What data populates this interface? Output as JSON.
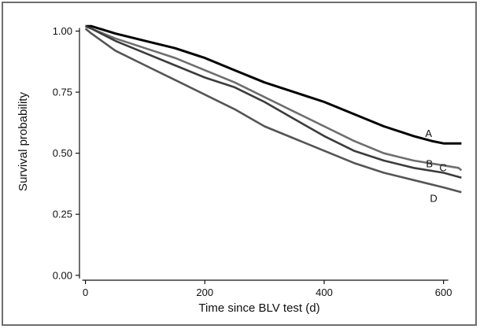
{
  "chart_data": {
    "type": "line",
    "xlabel": "Time since BLV test (d)",
    "ylabel": "Survival probability",
    "xlim": [
      -10,
      640
    ],
    "ylim": [
      -0.02,
      1.05
    ],
    "xticks": [
      0,
      200,
      400,
      600
    ],
    "yticks": [
      0.0,
      0.25,
      0.5,
      0.75,
      1.0
    ],
    "xtick_labels": [
      "0",
      "200",
      "400",
      "600"
    ],
    "ytick_labels": [
      "0.00",
      "0.25",
      "0.50",
      "0.75",
      "1.00"
    ],
    "grid": false,
    "legend": "direct labels at line ends",
    "series": [
      {
        "name": "A",
        "color": "#000000",
        "x": [
          0,
          10,
          50,
          100,
          150,
          200,
          250,
          300,
          350,
          400,
          450,
          500,
          550,
          580,
          600,
          630
        ],
        "y": [
          1.02,
          1.02,
          0.99,
          0.96,
          0.93,
          0.89,
          0.84,
          0.79,
          0.75,
          0.71,
          0.66,
          0.61,
          0.57,
          0.55,
          0.54,
          0.54
        ]
      },
      {
        "name": "B",
        "color": "#6e6e6e",
        "x": [
          0,
          10,
          50,
          100,
          150,
          200,
          250,
          300,
          350,
          400,
          450,
          500,
          550,
          600,
          625,
          630
        ],
        "y": [
          1.02,
          1.01,
          0.97,
          0.93,
          0.89,
          0.84,
          0.79,
          0.73,
          0.67,
          0.61,
          0.55,
          0.5,
          0.47,
          0.45,
          0.44,
          0.43
        ]
      },
      {
        "name": "C",
        "color": "#3c3c3c",
        "x": [
          0,
          10,
          50,
          100,
          150,
          200,
          250,
          300,
          350,
          400,
          450,
          500,
          550,
          600,
          630
        ],
        "y": [
          1.02,
          1.01,
          0.96,
          0.91,
          0.86,
          0.81,
          0.77,
          0.71,
          0.64,
          0.57,
          0.51,
          0.47,
          0.44,
          0.42,
          0.4
        ]
      },
      {
        "name": "D",
        "color": "#555555",
        "x": [
          0,
          10,
          50,
          100,
          150,
          200,
          250,
          300,
          350,
          400,
          450,
          500,
          550,
          600,
          630
        ],
        "y": [
          1.01,
          0.99,
          0.92,
          0.86,
          0.8,
          0.74,
          0.68,
          0.61,
          0.56,
          0.51,
          0.46,
          0.42,
          0.39,
          0.36,
          0.34
        ]
      }
    ]
  }
}
